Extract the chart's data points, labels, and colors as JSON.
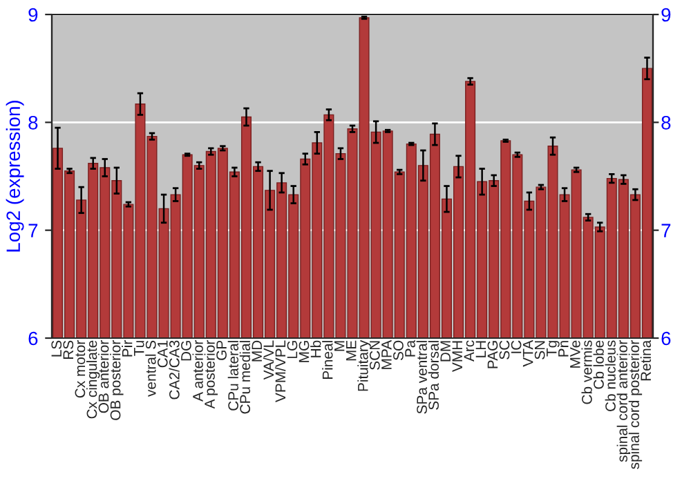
{
  "chart_data": {
    "type": "bar",
    "ylabel": "Log2 (expression)",
    "categories": [
      "LS",
      "RS",
      "Cx motor",
      "Cx cingulate",
      "OB anterior",
      "OB posterior",
      "Pir",
      "Tu",
      "ventral S",
      "CA1",
      "CA2/CA3",
      "DG",
      "A anterior",
      "A posterior",
      "GP",
      "CPu lateral",
      "CPu medial",
      "MD",
      "VA/VL",
      "VPM/VPL",
      "LG",
      "MG",
      "Hb",
      "Pineal",
      "M",
      "ME",
      "Pituitary",
      "SCN",
      "MPA",
      "SO",
      "Pa",
      "SPa ventral",
      "SPa dorsal",
      "DM",
      "VMH",
      "Arc",
      "LH",
      "PAG",
      "SC",
      "IC",
      "VTA",
      "SN",
      "Tg",
      "Pn",
      "MVe",
      "Cb vermis",
      "Cb lobe",
      "Cb nucleus",
      "spinal cord anterior",
      "spinal cord posterior",
      "Retina"
    ],
    "series": [
      {
        "color": "#b33a3a",
        "values": [
          7.76,
          7.55,
          7.28,
          7.62,
          7.58,
          7.46,
          7.24,
          8.17,
          7.87,
          7.2,
          7.33,
          7.7,
          7.6,
          7.73,
          7.76,
          7.54,
          8.05,
          7.59,
          7.37,
          7.44,
          7.33,
          7.66,
          7.81,
          8.07,
          7.71,
          7.94,
          8.97,
          7.91,
          7.92,
          7.54,
          7.8,
          7.6,
          7.89,
          7.29,
          7.59,
          8.38,
          7.45,
          7.46,
          7.83,
          7.7,
          7.27,
          7.4,
          7.78,
          7.33,
          7.56,
          7.12,
          7.03,
          7.48,
          7.47,
          7.33,
          8.5
        ],
        "errors": [
          0.19,
          0.02,
          0.12,
          0.05,
          0.08,
          0.12,
          0.02,
          0.1,
          0.03,
          0.13,
          0.06,
          0.01,
          0.03,
          0.03,
          0.02,
          0.04,
          0.08,
          0.04,
          0.18,
          0.09,
          0.08,
          0.05,
          0.1,
          0.05,
          0.05,
          0.03,
          0.01,
          0.1,
          0.01,
          0.02,
          0.01,
          0.14,
          0.1,
          0.12,
          0.1,
          0.03,
          0.12,
          0.05,
          0.01,
          0.02,
          0.08,
          0.02,
          0.08,
          0.06,
          0.02,
          0.03,
          0.04,
          0.04,
          0.04,
          0.05,
          0.1
        ]
      }
    ],
    "ylim": [
      6,
      9
    ],
    "yticks": [
      6,
      7,
      8,
      9
    ],
    "y2lim": [
      6,
      9
    ],
    "y2ticks": [
      6,
      7,
      8,
      9
    ],
    "grid": "y"
  }
}
